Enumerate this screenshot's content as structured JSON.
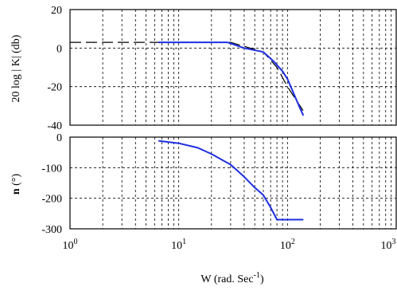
{
  "chart_data": [
    {
      "type": "line",
      "ylabel": "20 log | K| (db)",
      "xscale": "log",
      "xlim": [
        1,
        1000
      ],
      "ylim": [
        -40,
        20
      ],
      "yticks": [
        "20",
        "0",
        "-20",
        "-40"
      ],
      "grid": true,
      "series": [
        {
          "style": "asymptote-dashed",
          "color": "#000000",
          "x": [
            1,
            30,
            60,
            80,
            100,
            145
          ],
          "y": [
            3,
            3,
            -2,
            -10,
            -20,
            -34
          ]
        },
        {
          "style": "solid",
          "color": "#1f2fe0",
          "x": [
            6.5,
            20,
            28,
            40,
            60,
            75,
            90,
            100,
            115,
            130,
            140
          ],
          "y": [
            3,
            3,
            3,
            0,
            -2,
            -7,
            -12,
            -16,
            -24,
            -31,
            -35
          ]
        }
      ]
    },
    {
      "type": "line",
      "ylabel": "n (°)",
      "xlabel": "W (rad. Sec",
      "xlabel_sup": "-1",
      "xlabel_end": ")",
      "xscale": "log",
      "xlim": [
        1,
        1000
      ],
      "ylim": [
        -300,
        0
      ],
      "yticks": [
        "0",
        "-100",
        "-200",
        "-300"
      ],
      "xticks": [
        {
          "base": "10",
          "exp": "0"
        },
        {
          "base": "10",
          "exp": "1"
        },
        {
          "base": "10",
          "exp": "2"
        },
        {
          "base": "10",
          "exp": "3"
        }
      ],
      "grid": true,
      "series": [
        {
          "style": "solid",
          "color": "#1f2fe0",
          "x": [
            6.5,
            10,
            15,
            20,
            30,
            40,
            50,
            60,
            70,
            80,
            90,
            100,
            140
          ],
          "y": [
            -12,
            -20,
            -35,
            -55,
            -90,
            -130,
            -165,
            -190,
            -230,
            -270,
            -270,
            -270,
            -270
          ]
        }
      ]
    }
  ]
}
